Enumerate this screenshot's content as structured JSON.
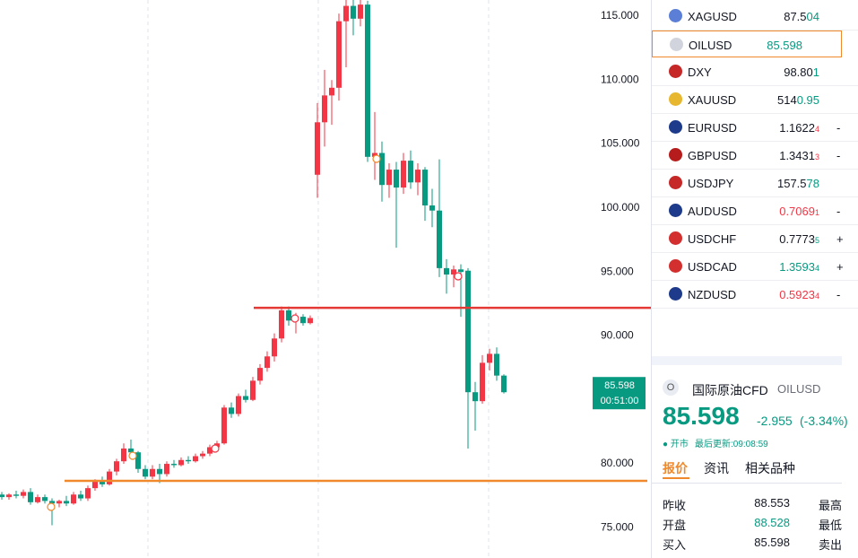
{
  "chart_data": {
    "type": "candlestick",
    "ylim": [
      72.64,
      116.26
    ],
    "yticks": [
      {
        "value": 115,
        "label": "115.000"
      },
      {
        "value": 110,
        "label": "110.000"
      },
      {
        "value": 105,
        "label": "105.000"
      },
      {
        "value": 100,
        "label": "100.000"
      },
      {
        "value": 95,
        "label": "95.000"
      },
      {
        "value": 90,
        "label": "90.000"
      },
      {
        "value": 80,
        "label": "80.000"
      },
      {
        "value": 75,
        "label": "75.000"
      }
    ],
    "open": [
      77.6,
      77.4,
      77.6,
      77.5,
      77.8,
      77.0,
      77.4,
      77.1,
      76.9,
      77.1,
      76.9,
      77.6,
      77.3,
      78.1,
      78.6,
      78.4,
      79.4,
      80.2,
      81.2,
      80.9,
      79.6,
      79.0,
      79.6,
      79.2,
      80.0,
      79.9,
      80.3,
      80.2,
      80.6,
      80.8,
      81.3,
      81.6,
      84.4,
      83.9,
      85.3,
      85.0,
      86.5,
      87.5,
      88.4,
      89.8,
      92.0,
      91.2,
      91.5,
      91.0,
      102.6,
      106.7,
      108.8,
      109.4,
      114.6,
      115.8,
      114.8,
      115.9,
      104.0,
      104.3,
      101.8,
      103.0,
      101.6,
      103.7,
      102.0,
      103.0,
      100.2,
      99.8,
      95.3,
      94.8,
      95.2,
      95.1,
      85.6,
      84.9,
      87.9,
      88.6,
      86.9
    ],
    "high": [
      77.8,
      77.7,
      77.9,
      78.0,
      78.1,
      77.6,
      77.6,
      77.3,
      77.2,
      77.5,
      77.8,
      77.9,
      78.3,
      78.8,
      79.0,
      79.6,
      80.4,
      81.6,
      81.9,
      81.0,
      79.9,
      79.9,
      80.0,
      80.2,
      80.3,
      80.5,
      80.6,
      80.8,
      81.0,
      81.5,
      81.8,
      84.6,
      84.8,
      85.5,
      85.8,
      86.8,
      87.8,
      88.8,
      90.2,
      92.3,
      92.3,
      91.8,
      91.7,
      91.6,
      108.2,
      110.8,
      110.0,
      115.2,
      116.3,
      116.3,
      116.3,
      116.2,
      107.5,
      105.2,
      103.5,
      103.6,
      104.3,
      104.5,
      103.5,
      103.2,
      101.5,
      103.8,
      96.0,
      95.5,
      95.6,
      95.3,
      86.4,
      88.5,
      89.0,
      89.1,
      87.0
    ],
    "low": [
      77.2,
      77.2,
      77.3,
      77.3,
      76.8,
      76.9,
      76.9,
      75.2,
      76.6,
      76.7,
      76.8,
      77.1,
      77.1,
      77.9,
      78.2,
      78.3,
      79.1,
      80.0,
      80.6,
      79.3,
      78.8,
      78.8,
      78.5,
      79.0,
      79.7,
      79.8,
      80.0,
      80.1,
      80.4,
      80.6,
      81.1,
      81.5,
      83.6,
      83.7,
      84.8,
      84.9,
      86.2,
      87.2,
      88.0,
      89.5,
      90.8,
      90.2,
      90.8,
      90.9,
      100.8,
      104.8,
      106.5,
      108.4,
      111.0,
      113.5,
      114.2,
      103.6,
      102.2,
      100.5,
      100.8,
      96.9,
      101.1,
      101.5,
      101.0,
      99.0,
      98.5,
      94.6,
      93.3,
      93.8,
      91.5,
      81.2,
      82.6,
      84.7,
      87.3,
      86.5,
      85.5
    ],
    "close": [
      77.4,
      77.6,
      77.5,
      77.8,
      77.0,
      77.4,
      77.1,
      76.9,
      77.1,
      76.9,
      77.6,
      77.3,
      78.1,
      78.6,
      78.4,
      79.4,
      80.2,
      81.2,
      80.9,
      79.6,
      79.0,
      79.6,
      79.2,
      80.0,
      79.9,
      80.3,
      80.2,
      80.6,
      80.8,
      81.3,
      81.6,
      84.4,
      83.9,
      85.3,
      85.0,
      86.5,
      87.5,
      88.4,
      89.8,
      92.0,
      91.2,
      91.5,
      91.0,
      91.4,
      106.7,
      108.8,
      109.4,
      114.6,
      115.8,
      114.8,
      115.9,
      104.0,
      104.3,
      101.8,
      103.0,
      101.6,
      103.7,
      102.0,
      103.0,
      100.2,
      99.8,
      95.3,
      94.8,
      95.2,
      95.0,
      85.6,
      84.9,
      87.9,
      88.6,
      86.9,
      85.598
    ],
    "up_color": "#f23645",
    "down_color": "#089981",
    "levels": [
      {
        "value": 92.2,
        "color": "#e53935"
      },
      {
        "value": 78.67,
        "color": "#f0892c"
      }
    ],
    "last_price": 85.598,
    "countdown": "00:51:00"
  },
  "watchlist": [
    {
      "symbol": "XAGUSD",
      "icon": "#5b7fd6",
      "price": [
        {
          "text": "87.5"
        },
        {
          "text": "04",
          "color": "#089981"
        }
      ]
    },
    {
      "symbol": "OILUSD",
      "icon": "#d1d4dc",
      "selected": true,
      "price": [
        {
          "text": "85.598",
          "color": "#089981"
        }
      ]
    },
    {
      "symbol": "DXY",
      "icon": "#c62828",
      "price": [
        {
          "text": "98.80"
        },
        {
          "text": "1",
          "color": "#089981"
        }
      ]
    },
    {
      "symbol": "XAUUSD",
      "icon": "#e8b730",
      "price": [
        {
          "text": "514"
        },
        {
          "text": "0.95",
          "color": "#089981"
        }
      ]
    },
    {
      "symbol": "EURUSD",
      "icon": "#1e3a8a",
      "price": [
        {
          "text": "1.1622"
        },
        {
          "text": "4",
          "color": "#f23645",
          "small": true
        }
      ],
      "peek": "-"
    },
    {
      "symbol": "GBPUSD",
      "icon": "#b71c1c",
      "price": [
        {
          "text": "1.3431"
        },
        {
          "text": "3",
          "color": "#f23645",
          "small": true
        }
      ],
      "peek": "-"
    },
    {
      "symbol": "USDJPY",
      "icon": "#c62828",
      "price": [
        {
          "text": "157.5"
        },
        {
          "text": "78",
          "color": "#089981"
        }
      ]
    },
    {
      "symbol": "AUDUSD",
      "icon": "#1e3a8a",
      "price": [
        {
          "text": "0.7069",
          "color": "#f23645"
        },
        {
          "text": "1",
          "color": "#f23645",
          "small": true
        }
      ],
      "peek": "-"
    },
    {
      "symbol": "USDCHF",
      "icon": "#d32f2f",
      "price": [
        {
          "text": "0.7773"
        },
        {
          "text": "5",
          "color": "#089981",
          "small": true
        }
      ],
      "peek": "+"
    },
    {
      "symbol": "USDCAD",
      "icon": "#d32f2f",
      "price": [
        {
          "text": "1.3593",
          "color": "#089981"
        },
        {
          "text": "4",
          "color": "#089981",
          "small": true
        }
      ],
      "peek": "+"
    },
    {
      "symbol": "NZDUSD",
      "icon": "#1e3a8a",
      "price": [
        {
          "text": "0.5923",
          "color": "#f23645"
        },
        {
          "text": "4",
          "color": "#f23645",
          "small": true
        }
      ],
      "peek": "-"
    }
  ],
  "detail": {
    "icon": "O",
    "name": "国际原油CFD",
    "symbol": "OILUSD",
    "price": "85.598",
    "change": "-2.955",
    "change_pct": "(-3.34%)",
    "status": "● 开市",
    "updated": "最后更新:09:08:59",
    "tabs": [
      "报价",
      "资讯",
      "相关品种"
    ],
    "rows": [
      [
        "昨收",
        "88.553",
        "最高"
      ],
      [
        "开盘",
        "88.528",
        "最低"
      ],
      [
        "买入",
        "85.598",
        "卖出"
      ]
    ]
  }
}
